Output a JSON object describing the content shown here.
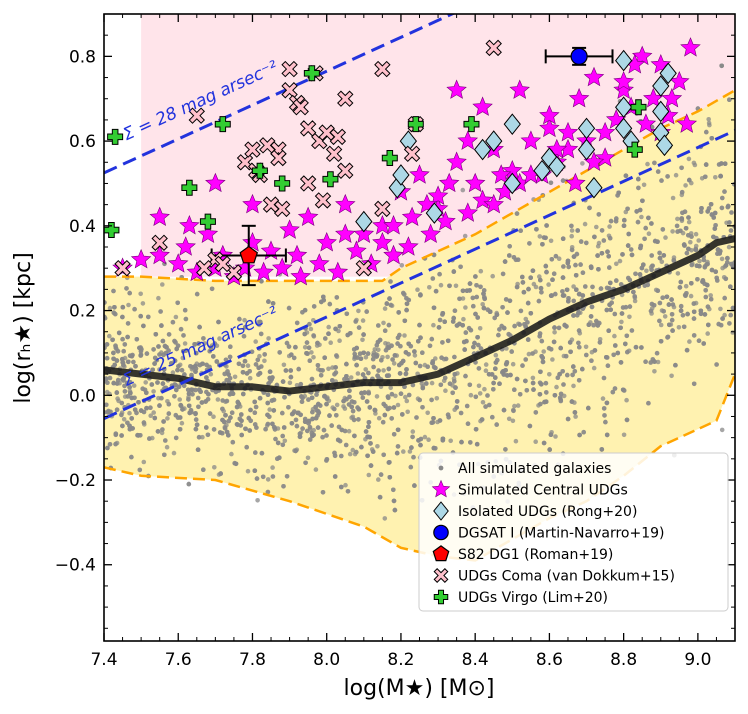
{
  "chart_data": {
    "type": "scatter",
    "xlabel": "log(M★) [M⊙]",
    "ylabel": "log(rₕ★) [kpc]",
    "xlim": [
      7.4,
      9.1
    ],
    "ylim": [
      -0.58,
      0.9
    ],
    "xticks": [
      7.4,
      7.6,
      7.8,
      8.0,
      8.2,
      8.4,
      8.6,
      8.8,
      9.0
    ],
    "xtick_labels": [
      "7.4",
      "7.6",
      "7.8",
      "8.0",
      "8.2",
      "8.4",
      "8.6",
      "8.8",
      "9.0"
    ],
    "yticks": [
      -0.4,
      -0.2,
      0.0,
      0.2,
      0.4,
      0.6,
      0.8
    ],
    "ytick_labels": [
      "−0.4",
      "−0.2",
      "0.0",
      "0.2",
      "0.4",
      "0.6",
      "0.8"
    ],
    "grid": false,
    "legend_position": "bottom-right",
    "colors": {
      "simulated": "#888888",
      "central_udgs": "#ff00ff",
      "rong": "#add8e6",
      "dgsat": "#0000ff",
      "s82": "#ff0000",
      "coma": "#ffc0cb",
      "virgo": "#32cd32",
      "udg_region": "#ffe4ea",
      "simulated_region": "#fff2b0",
      "region_edge": "#ffa500",
      "sb_lines": "#2233dd",
      "median": "#1a1a1a"
    },
    "legend": [
      {
        "label": "All simulated galaxies",
        "marker": "dot",
        "color": "#888888"
      },
      {
        "label": "Simulated Central UDGs",
        "marker": "star",
        "color": "#ff00ff"
      },
      {
        "label": "Isolated UDGs (Rong+20)",
        "marker": "diamond",
        "color": "#add8e6"
      },
      {
        "label": "DGSAT I (Martin-Navarro+19)",
        "marker": "circle",
        "color": "#0000ff"
      },
      {
        "label": "S82 DG1 (Roman+19)",
        "marker": "pentagon",
        "color": "#ff0000"
      },
      {
        "label": "UDGs Coma (van Dokkum+15)",
        "marker": "xsquare",
        "color": "#ffc0cb"
      },
      {
        "label": "UDGs Virgo (Lim+20)",
        "marker": "plus",
        "color": "#32cd32"
      }
    ],
    "annotations": [
      {
        "text": "Σ = 28 mag arsec⁻²",
        "line": "sb28"
      },
      {
        "text": "Σ = 25 mag arsec⁻²",
        "line": "sb25"
      }
    ],
    "udg_region": {
      "x": [
        7.5,
        9.1
      ],
      "y": [
        0.28,
        0.9
      ]
    },
    "sb_lines": {
      "sb28": {
        "x": [
          7.4,
          9.1
        ],
        "y": [
          0.525,
          1.205
        ]
      },
      "sb25": {
        "x": [
          7.4,
          9.1
        ],
        "y": [
          -0.055,
          0.625
        ]
      }
    },
    "region_upper": {
      "x": [
        7.4,
        7.5,
        7.7,
        7.9,
        8.1,
        8.15,
        8.2,
        8.3,
        8.4,
        8.5,
        8.6,
        8.7,
        8.8,
        8.9,
        9.0,
        9.1
      ],
      "y": [
        0.28,
        0.28,
        0.27,
        0.27,
        0.27,
        0.27,
        0.3,
        0.34,
        0.38,
        0.43,
        0.48,
        0.53,
        0.58,
        0.63,
        0.67,
        0.72
      ]
    },
    "region_lower": {
      "x": [
        7.4,
        7.5,
        7.7,
        7.9,
        8.1,
        8.2,
        8.3,
        8.4,
        8.5,
        8.6,
        8.7,
        8.8,
        8.9,
        9.0,
        9.05,
        9.1
      ],
      "y": [
        -0.17,
        -0.19,
        -0.2,
        -0.25,
        -0.31,
        -0.36,
        -0.38,
        -0.39,
        -0.34,
        -0.29,
        -0.25,
        -0.19,
        -0.12,
        -0.08,
        -0.06,
        0.05
      ]
    },
    "median_line": {
      "x": [
        7.4,
        7.5,
        7.6,
        7.7,
        7.8,
        7.9,
        8.0,
        8.1,
        8.2,
        8.3,
        8.4,
        8.5,
        8.6,
        8.7,
        8.8,
        8.9,
        9.0,
        9.05,
        9.1
      ],
      "y": [
        0.06,
        0.05,
        0.04,
        0.02,
        0.02,
        0.01,
        0.02,
        0.03,
        0.03,
        0.05,
        0.09,
        0.13,
        0.18,
        0.22,
        0.25,
        0.29,
        0.33,
        0.36,
        0.37
      ]
    },
    "series": [
      {
        "name": "Simulated Central UDGs",
        "marker": "star",
        "x": [
          7.45,
          7.5,
          7.55,
          7.6,
          7.62,
          7.65,
          7.68,
          7.7,
          7.72,
          7.75,
          7.78,
          7.8,
          7.83,
          7.85,
          7.88,
          7.9,
          7.93,
          7.95,
          7.98,
          8.0,
          8.03,
          8.05,
          8.08,
          8.1,
          8.12,
          8.15,
          8.18,
          8.2,
          8.22,
          8.25,
          8.28,
          8.3,
          8.32,
          8.35,
          8.38,
          8.4,
          8.42,
          8.45,
          8.48,
          8.5,
          8.52,
          8.55,
          8.58,
          8.6,
          8.62,
          8.65,
          8.68,
          8.7,
          8.72,
          8.75,
          8.78,
          8.8,
          8.82,
          8.85,
          8.88,
          8.9,
          8.92,
          8.95,
          8.98,
          7.55,
          7.63,
          7.7,
          7.8,
          7.92,
          8.05,
          8.15,
          8.23,
          8.3,
          8.38,
          8.45,
          8.52,
          8.6,
          8.67,
          8.75,
          8.83,
          8.9,
          8.97,
          8.35,
          8.42,
          8.55,
          8.65,
          8.72,
          8.8,
          8.86,
          8.93,
          8.18,
          8.27,
          8.33,
          8.47,
          8.62
        ],
        "y": [
          0.3,
          0.32,
          0.33,
          0.31,
          0.35,
          0.29,
          0.38,
          0.3,
          0.33,
          0.28,
          0.3,
          0.45,
          0.29,
          0.34,
          0.3,
          0.39,
          0.28,
          0.42,
          0.31,
          0.36,
          0.29,
          0.45,
          0.34,
          0.38,
          0.31,
          0.4,
          0.33,
          0.48,
          0.35,
          0.52,
          0.38,
          0.44,
          0.41,
          0.55,
          0.43,
          0.5,
          0.46,
          0.58,
          0.48,
          0.53,
          0.5,
          0.6,
          0.52,
          0.63,
          0.55,
          0.58,
          0.7,
          0.6,
          0.75,
          0.62,
          0.65,
          0.72,
          0.68,
          0.8,
          0.7,
          0.78,
          0.66,
          0.74,
          0.82,
          0.42,
          0.4,
          0.5,
          0.36,
          0.33,
          0.38,
          0.36,
          0.42,
          0.47,
          0.6,
          0.45,
          0.72,
          0.66,
          0.5,
          0.56,
          0.78,
          0.62,
          0.64,
          0.72,
          0.68,
          0.52,
          0.62,
          0.55,
          0.74,
          0.64,
          0.7,
          0.4,
          0.45,
          0.5,
          0.52,
          0.58
        ]
      },
      {
        "name": "Isolated UDGs (Rong+20)",
        "marker": "diamond",
        "x": [
          8.1,
          8.19,
          8.2,
          8.22,
          8.29,
          8.42,
          8.45,
          8.5,
          8.5,
          8.58,
          8.6,
          8.62,
          8.7,
          8.7,
          8.72,
          8.8,
          8.8,
          8.8,
          8.82,
          8.9,
          8.9,
          8.9,
          8.91,
          8.92
        ],
        "y": [
          0.41,
          0.49,
          0.52,
          0.6,
          0.43,
          0.58,
          0.6,
          0.5,
          0.64,
          0.53,
          0.56,
          0.54,
          0.63,
          0.58,
          0.49,
          0.79,
          0.68,
          0.63,
          0.6,
          0.73,
          0.67,
          0.62,
          0.59,
          0.76
        ]
      },
      {
        "name": "DGSAT I (Martin-Navarro+19)",
        "marker": "circle",
        "x": [
          8.68
        ],
        "y": [
          0.8
        ],
        "xerr": [
          0.09
        ],
        "yerr": [
          0.02
        ]
      },
      {
        "name": "S82 DG1 (Roman+19)",
        "marker": "pentagon",
        "x": [
          7.79
        ],
        "y": [
          0.33
        ],
        "xerr": [
          0.1
        ],
        "yerr": [
          0.07
        ]
      },
      {
        "name": "UDGs Coma (van Dokkum+15)",
        "marker": "xsquare",
        "x": [
          7.45,
          7.55,
          7.65,
          7.7,
          7.75,
          7.78,
          7.8,
          7.82,
          7.84,
          7.85,
          7.87,
          7.88,
          7.9,
          7.9,
          7.92,
          7.93,
          7.95,
          7.97,
          7.98,
          8.0,
          8.02,
          8.03,
          8.05,
          8.05,
          8.1,
          8.15,
          8.15,
          8.23,
          8.24,
          8.45,
          7.81,
          7.87,
          7.67,
          7.72,
          7.95,
          7.99
        ],
        "y": [
          0.3,
          0.36,
          0.66,
          0.32,
          0.29,
          0.55,
          0.58,
          0.52,
          0.59,
          0.45,
          0.58,
          0.44,
          0.77,
          0.72,
          0.69,
          0.68,
          0.63,
          0.76,
          0.6,
          0.62,
          0.57,
          0.61,
          0.7,
          0.53,
          0.3,
          0.44,
          0.77,
          0.57,
          0.64,
          0.82,
          0.53,
          0.56,
          0.3,
          0.31,
          0.5,
          0.46
        ]
      },
      {
        "name": "UDGs Virgo (Lim+20)",
        "marker": "plus",
        "x": [
          7.42,
          7.43,
          7.63,
          7.68,
          7.72,
          7.82,
          7.88,
          7.96,
          8.01,
          8.17,
          8.24,
          8.39,
          8.83,
          8.84
        ],
        "y": [
          0.39,
          0.61,
          0.49,
          0.41,
          0.64,
          0.53,
          0.5,
          0.76,
          0.51,
          0.56,
          0.64,
          0.64,
          0.58,
          0.68
        ]
      }
    ]
  }
}
